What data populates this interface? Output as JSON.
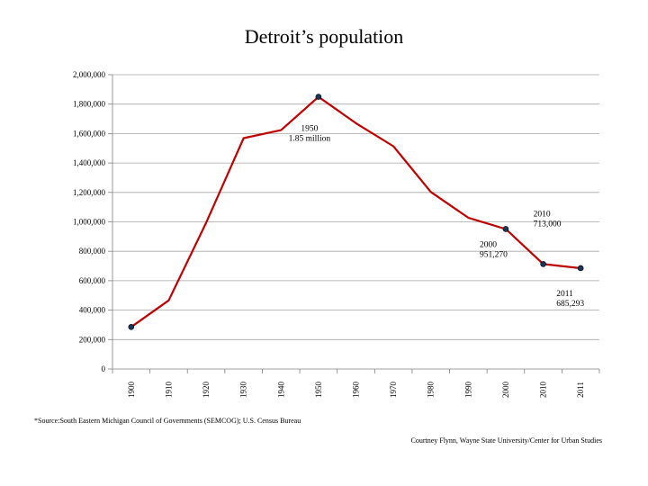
{
  "chart_data": {
    "type": "line",
    "title": "Detroit’s population",
    "xlabel": "",
    "ylabel": "",
    "categories": [
      "1900",
      "1910",
      "1920",
      "1930",
      "1940",
      "1950",
      "1960",
      "1970",
      "1980",
      "1990",
      "2000",
      "2010",
      "2011"
    ],
    "series": [
      {
        "values": [
          285704,
          465766,
          993078,
          1568662,
          1623452,
          1849568,
          1670144,
          1514063,
          1203339,
          1027974,
          951270,
          713000,
          685293
        ],
        "color": "#c00000"
      }
    ],
    "markers": [
      "1900",
      "1950",
      "2000",
      "2010",
      "2011"
    ],
    "ylim": [
      0,
      2000000
    ],
    "ytick_labels": [
      "0",
      "200,000",
      "400,000",
      "600,000",
      "800,000",
      "1,000,000",
      "1,200,000",
      "1,400,000",
      "1,600,000",
      "1,800,000",
      "2,000,000"
    ],
    "grid": true,
    "annotations": [
      {
        "category": "1950",
        "lines": [
          "1950",
          "1.85 million"
        ]
      },
      {
        "category": "2000",
        "lines": [
          "2000",
          "951,270"
        ]
      },
      {
        "category": "2010",
        "lines": [
          "2010",
          "713,000"
        ]
      },
      {
        "category": "2011",
        "lines": [
          "2011",
          "685,293"
        ]
      }
    ]
  },
  "footer": {
    "source": "*Source:South Eastern Michigan Council of Governments (SEMCOG); U.S. Census Bureau",
    "credit": "Courtney Flynn, Wayne State University/Center for Urban Studies"
  }
}
